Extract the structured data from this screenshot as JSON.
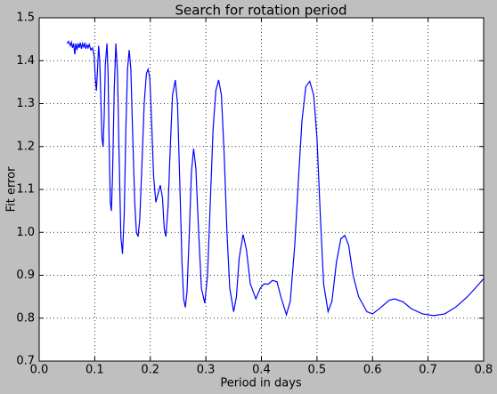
{
  "chart_data": {
    "type": "line",
    "title": "Search for rotation period",
    "xlabel": "Period in days",
    "ylabel": "Fit error",
    "xlim": [
      0,
      0.8
    ],
    "ylim": [
      0.7,
      1.5
    ],
    "xticks": [
      {
        "value": 0,
        "label": "0.0"
      },
      0.1,
      0.2,
      0.3,
      0.4,
      0.5,
      0.6,
      0.7,
      0.8
    ],
    "yticks": [
      0.7,
      0.8,
      0.9,
      {
        "value": 1,
        "label": "1.0"
      },
      1.1,
      1.2,
      1.3,
      1.4,
      1.5
    ],
    "grid": true,
    "color": "#0000ff",
    "x": [
      0.05,
      0.053,
      0.056,
      0.058,
      0.06,
      0.062,
      0.064,
      0.066,
      0.068,
      0.07,
      0.072,
      0.074,
      0.076,
      0.078,
      0.08,
      0.082,
      0.084,
      0.086,
      0.088,
      0.09,
      0.093,
      0.096,
      0.099,
      0.101,
      0.103,
      0.105,
      0.107,
      0.109,
      0.111,
      0.113,
      0.115,
      0.117,
      0.119,
      0.122,
      0.124,
      0.126,
      0.128,
      0.13,
      0.132,
      0.135,
      0.138,
      0.141,
      0.144,
      0.147,
      0.15,
      0.153,
      0.156,
      0.159,
      0.162,
      0.165,
      0.168,
      0.172,
      0.175,
      0.178,
      0.181,
      0.185,
      0.189,
      0.193,
      0.196,
      0.199,
      0.202,
      0.206,
      0.21,
      0.214,
      0.218,
      0.222,
      0.225,
      0.228,
      0.232,
      0.236,
      0.24,
      0.245,
      0.249,
      0.253,
      0.257,
      0.26,
      0.263,
      0.266,
      0.27,
      0.274,
      0.278,
      0.282,
      0.287,
      0.292,
      0.298,
      0.303,
      0.308,
      0.313,
      0.318,
      0.323,
      0.328,
      0.333,
      0.338,
      0.343,
      0.35,
      0.355,
      0.36,
      0.367,
      0.373,
      0.38,
      0.39,
      0.398,
      0.405,
      0.412,
      0.42,
      0.428,
      0.435,
      0.445,
      0.452,
      0.46,
      0.467,
      0.473,
      0.48,
      0.487,
      0.494,
      0.5,
      0.506,
      0.512,
      0.52,
      0.527,
      0.535,
      0.543,
      0.55,
      0.557,
      0.565,
      0.575,
      0.59,
      0.6,
      0.615,
      0.63,
      0.64,
      0.655,
      0.67,
      0.69,
      0.71,
      0.73,
      0.75,
      0.77,
      0.785,
      0.8
    ],
    "values": [
      1.44,
      1.445,
      1.435,
      1.443,
      1.43,
      1.44,
      1.415,
      1.44,
      1.425,
      1.44,
      1.43,
      1.442,
      1.428,
      1.44,
      1.432,
      1.44,
      1.428,
      1.437,
      1.43,
      1.438,
      1.425,
      1.43,
      1.41,
      1.36,
      1.33,
      1.38,
      1.435,
      1.4,
      1.31,
      1.22,
      1.2,
      1.27,
      1.39,
      1.44,
      1.37,
      1.2,
      1.07,
      1.05,
      1.13,
      1.33,
      1.44,
      1.37,
      1.17,
      0.99,
      0.95,
      1.04,
      1.24,
      1.38,
      1.425,
      1.38,
      1.24,
      1.07,
      1.0,
      0.99,
      1.03,
      1.16,
      1.3,
      1.37,
      1.38,
      1.36,
      1.27,
      1.13,
      1.07,
      1.09,
      1.11,
      1.08,
      1.01,
      0.99,
      1.06,
      1.2,
      1.32,
      1.355,
      1.3,
      1.12,
      0.93,
      0.845,
      0.825,
      0.86,
      0.99,
      1.14,
      1.195,
      1.15,
      1.0,
      0.87,
      0.835,
      0.9,
      1.07,
      1.24,
      1.33,
      1.355,
      1.32,
      1.18,
      1.0,
      0.87,
      0.815,
      0.85,
      0.94,
      0.995,
      0.96,
      0.88,
      0.845,
      0.87,
      0.88,
      0.879,
      0.888,
      0.885,
      0.85,
      0.808,
      0.84,
      0.97,
      1.13,
      1.26,
      1.34,
      1.352,
      1.32,
      1.22,
      1.04,
      0.88,
      0.815,
      0.84,
      0.93,
      0.985,
      0.993,
      0.97,
      0.9,
      0.85,
      0.815,
      0.81,
      0.825,
      0.842,
      0.845,
      0.838,
      0.822,
      0.81,
      0.806,
      0.81,
      0.826,
      0.849,
      0.87,
      0.892
    ]
  }
}
